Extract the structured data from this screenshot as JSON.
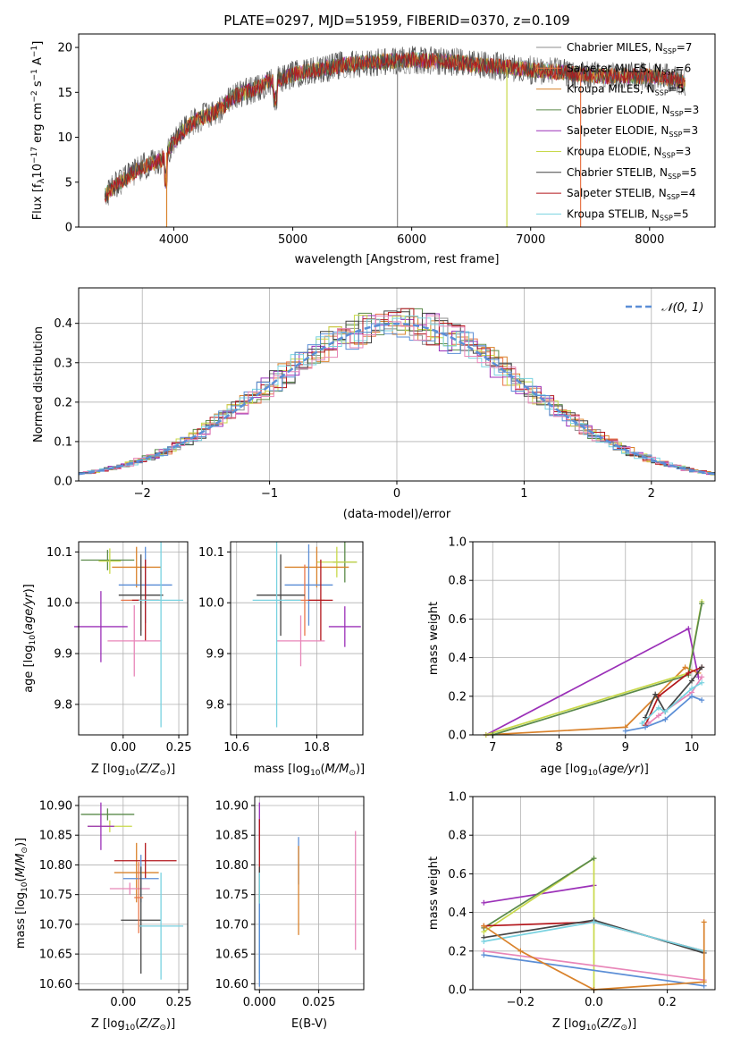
{
  "figure_title": "PLATE=0297, MJD=51959, FIBERID=0370, z=0.109",
  "colors": {
    "chabrier_miles": "#8c8c8c",
    "salpeter_miles": "#e8764a",
    "kroupa_miles": "#d9822b",
    "chabrier_elodie": "#5a8a4a",
    "salpeter_elodie": "#9b30b8",
    "kroupa_elodie": "#c8d94a",
    "chabrier_stelib": "#444444",
    "salpeter_stelib": "#b3161b",
    "kroupa_stelib": "#79d2e0",
    "blue": "#5b8ed6",
    "pink": "#e886b8",
    "normal_curve": "#5b8ed6"
  },
  "chart_data": [
    {
      "id": "spectrum",
      "type": "line",
      "title": "PLATE=0297, MJD=51959, FIBERID=0370, z=0.109",
      "xlabel": "wavelength [Angstrom, rest frame]",
      "ylabel": "Flux [fλ10⁻¹⁷ erg cm⁻² s⁻¹ A⁻¹]",
      "xlim": [
        3200,
        8550
      ],
      "ylim": [
        0,
        21.5
      ],
      "xticks": [
        4000,
        5000,
        6000,
        7000,
        8000
      ],
      "yticks": [
        0,
        5,
        10,
        15,
        20
      ],
      "grid": false,
      "legend_position": "upper-right",
      "legend": [
        {
          "label": "Chabrier MILES, N",
          "sub": "SSP",
          "value": "=7",
          "color": "#8c8c8c"
        },
        {
          "label": "Salpeter MILES, N",
          "sub": "SSP",
          "value": "=6",
          "color": "#e8764a"
        },
        {
          "label": "Kroupa MILES, N",
          "sub": "SSP",
          "value": "=5",
          "color": "#d9822b"
        },
        {
          "label": "Chabrier ELODIE, N",
          "sub": "SSP",
          "value": "=3",
          "color": "#5a8a4a"
        },
        {
          "label": "Salpeter ELODIE, N",
          "sub": "SSP",
          "value": "=3",
          "color": "#9b30b8"
        },
        {
          "label": "Kroupa ELODIE, N",
          "sub": "SSP",
          "value": "=3",
          "color": "#c8d94a"
        },
        {
          "label": "Chabrier STELIB, N",
          "sub": "SSP",
          "value": "=5",
          "color": "#444444"
        },
        {
          "label": "Salpeter STELIB, N",
          "sub": "SSP",
          "value": "=4",
          "color": "#b3161b"
        },
        {
          "label": "Kroupa STELIB, N",
          "sub": "SSP",
          "value": "=5",
          "color": "#79d2e0"
        }
      ],
      "continuum": [
        [
          3420,
          3.5
        ],
        [
          3500,
          4.5
        ],
        [
          3600,
          5.5
        ],
        [
          3700,
          6.5
        ],
        [
          3800,
          7.0
        ],
        [
          3900,
          7.5
        ],
        [
          4000,
          9.5
        ],
        [
          4100,
          11.0
        ],
        [
          4200,
          12.0
        ],
        [
          4300,
          12.5
        ],
        [
          4400,
          13.2
        ],
        [
          4500,
          14.5
        ],
        [
          4600,
          15.0
        ],
        [
          4700,
          15.5
        ],
        [
          4800,
          16.2
        ],
        [
          4900,
          16.5
        ],
        [
          5000,
          17.0
        ],
        [
          5200,
          17.5
        ],
        [
          5400,
          18.0
        ],
        [
          5600,
          18.3
        ],
        [
          5800,
          18.5
        ],
        [
          6000,
          18.6
        ],
        [
          6200,
          18.5
        ],
        [
          6400,
          18.3
        ],
        [
          6600,
          18.0
        ],
        [
          6800,
          17.8
        ],
        [
          7000,
          17.5
        ],
        [
          7200,
          17.3
        ],
        [
          7400,
          17.0
        ],
        [
          7600,
          16.8
        ],
        [
          7800,
          16.8
        ],
        [
          8000,
          16.8
        ],
        [
          8200,
          16.5
        ],
        [
          8300,
          16.0
        ]
      ]
    },
    {
      "id": "residuals",
      "type": "histogram",
      "xlabel": "(data-model)/error",
      "ylabel": "Normed distribution",
      "xlim": [
        -2.5,
        2.5
      ],
      "ylim": [
        0,
        0.49
      ],
      "xticks": [
        -2,
        -1,
        0,
        1,
        2
      ],
      "yticks": [
        0.0,
        0.1,
        0.2,
        0.3,
        0.4
      ],
      "grid": true,
      "legend_position": "upper-right",
      "legend": [
        {
          "label": "𝒩(0, 1)",
          "color": "#5b8ed6",
          "style": "dashed"
        }
      ]
    },
    {
      "id": "age_vs_z",
      "type": "errorbar",
      "xlabel": "Z [log₁₀(Z/Z⊙)]",
      "ylabel": "age  [log₁₀(age/yr)]",
      "xlim": [
        -0.2,
        0.29
      ],
      "ylim": [
        9.74,
        10.12
      ],
      "xticks": [
        0.0,
        0.25
      ],
      "xtick_labels": [
        "0.00",
        "0.25"
      ],
      "yticks": [
        9.8,
        9.9,
        10.0,
        10.1
      ],
      "grid": true,
      "points": [
        {
          "x": -0.07,
          "xerr": 0.12,
          "y": 10.084,
          "yerr": 0.02,
          "color": "#5a8a4a"
        },
        {
          "x": -0.06,
          "xerr": 0.05,
          "y": 10.082,
          "yerr": 0.025,
          "color": "#c8d94a"
        },
        {
          "x": -0.1,
          "xerr": 0.12,
          "y": 9.953,
          "yerr": 0.07,
          "color": "#9b30b8"
        },
        {
          "x": 0.06,
          "xerr": 0.11,
          "y": 10.07,
          "yerr": 0.04,
          "color": "#d9822b"
        },
        {
          "x": 0.1,
          "xerr": 0.12,
          "y": 10.035,
          "yerr": 0.075,
          "color": "#5b8ed6"
        },
        {
          "x": 0.08,
          "xerr": 0.09,
          "y": 10.005,
          "yerr": 0.06,
          "color": "#e8764a"
        },
        {
          "x": 0.08,
          "xerr": 0.1,
          "y": 10.015,
          "yerr": 0.08,
          "color": "#444444"
        },
        {
          "x": 0.1,
          "xerr": 0.06,
          "y": 10.005,
          "yerr": 0.08,
          "color": "#b3161b"
        },
        {
          "x": 0.05,
          "xerr": 0.12,
          "y": 9.925,
          "yerr": 0.07,
          "color": "#e886b8"
        },
        {
          "x": 0.17,
          "xerr": 0.1,
          "y": 10.005,
          "yerr": 0.25,
          "color": "#79d2e0"
        }
      ]
    },
    {
      "id": "age_vs_mass",
      "type": "errorbar",
      "xlabel": "mass [log₁₀(M/M⊙)]",
      "xlim": [
        10.585,
        10.915
      ],
      "ylim": [
        9.74,
        10.12
      ],
      "xticks": [
        10.6,
        10.8
      ],
      "xtick_labels": [
        "10.6",
        "10.8"
      ],
      "yticks": [
        9.8,
        9.9,
        10.0,
        10.1
      ],
      "grid": true,
      "points": [
        {
          "x": 10.87,
          "xerr": 0.03,
          "y": 10.08,
          "yerr": 0.04,
          "color": "#5a8a4a"
        },
        {
          "x": 10.85,
          "xerr": 0.05,
          "y": 10.08,
          "yerr": 0.03,
          "color": "#c8d94a"
        },
        {
          "x": 10.87,
          "xerr": 0.04,
          "y": 9.953,
          "yerr": 0.04,
          "color": "#9b30b8"
        },
        {
          "x": 10.8,
          "xerr": 0.08,
          "y": 10.07,
          "yerr": 0.04,
          "color": "#d9822b"
        },
        {
          "x": 10.78,
          "xerr": 0.06,
          "y": 10.035,
          "yerr": 0.08,
          "color": "#5b8ed6"
        },
        {
          "x": 10.77,
          "xerr": 0.05,
          "y": 10.005,
          "yerr": 0.07,
          "color": "#e8764a"
        },
        {
          "x": 10.71,
          "xerr": 0.06,
          "y": 10.015,
          "yerr": 0.08,
          "color": "#444444"
        },
        {
          "x": 10.81,
          "xerr": 0.03,
          "y": 10.005,
          "yerr": 0.08,
          "color": "#b3161b"
        },
        {
          "x": 10.76,
          "xerr": 0.06,
          "y": 9.925,
          "yerr": 0.05,
          "color": "#e886b8"
        },
        {
          "x": 10.7,
          "xerr": 0.06,
          "y": 10.005,
          "yerr": 0.25,
          "color": "#79d2e0"
        }
      ]
    },
    {
      "id": "mass_weight_vs_age",
      "type": "line",
      "xlabel": "age  [log₁₀(age/yr)]",
      "ylabel": "mass weight",
      "xlim": [
        6.7,
        10.35
      ],
      "ylim": [
        0,
        1.0
      ],
      "xticks": [
        7,
        8,
        9,
        10
      ],
      "yticks": [
        0.0,
        0.2,
        0.4,
        0.6,
        0.8,
        1.0
      ],
      "grid": true,
      "series": [
        {
          "color": "#d9822b",
          "points": [
            [
              6.9,
              0
            ],
            [
              9.0,
              0.04
            ],
            [
              9.9,
              0.35
            ],
            [
              10.1,
              0.32
            ]
          ]
        },
        {
          "color": "#9b30b8",
          "points": [
            [
              6.9,
              0
            ],
            [
              9.95,
              0.55
            ],
            [
              10.1,
              0.3
            ]
          ]
        },
        {
          "color": "#c8d94a",
          "points": [
            [
              6.9,
              0
            ],
            [
              9.95,
              0.32
            ],
            [
              10.15,
              0.69
            ]
          ]
        },
        {
          "color": "#5a8a4a",
          "points": [
            [
              7.0,
              0
            ],
            [
              9.95,
              0.31
            ],
            [
              10.15,
              0.68
            ]
          ]
        },
        {
          "color": "#b3161b",
          "points": [
            [
              9.3,
              0.05
            ],
            [
              9.5,
              0.2
            ],
            [
              9.95,
              0.32
            ],
            [
              10.15,
              0.35
            ]
          ]
        },
        {
          "color": "#444444",
          "points": [
            [
              9.3,
              0.09
            ],
            [
              9.45,
              0.21
            ],
            [
              9.6,
              0.12
            ],
            [
              10.0,
              0.28
            ],
            [
              10.15,
              0.35
            ]
          ]
        },
        {
          "color": "#e886b8",
          "points": [
            [
              9.35,
              0.06
            ],
            [
              9.5,
              0.1
            ],
            [
              10.0,
              0.22
            ],
            [
              10.15,
              0.3
            ]
          ]
        },
        {
          "color": "#79d2e0",
          "points": [
            [
              9.25,
              0.06
            ],
            [
              9.5,
              0.14
            ],
            [
              9.6,
              0.12
            ],
            [
              10.0,
              0.24
            ],
            [
              10.15,
              0.27
            ]
          ]
        },
        {
          "color": "#5b8ed6",
          "points": [
            [
              9.0,
              0.02
            ],
            [
              9.3,
              0.04
            ],
            [
              9.6,
              0.08
            ],
            [
              10.0,
              0.2
            ],
            [
              10.15,
              0.18
            ]
          ]
        }
      ]
    },
    {
      "id": "mass_vs_z",
      "type": "errorbar",
      "xlabel": "Z [log₁₀(Z/Z⊙)]",
      "ylabel": "mass [log₁₀(M/M⊙)]",
      "xlim": [
        -0.2,
        0.29
      ],
      "ylim": [
        10.59,
        10.915
      ],
      "xticks": [
        0.0,
        0.25
      ],
      "xtick_labels": [
        "0.00",
        "0.25"
      ],
      "yticks": [
        10.6,
        10.65,
        10.7,
        10.75,
        10.8,
        10.85,
        10.9
      ],
      "grid": true,
      "points": [
        {
          "x": -0.07,
          "xerr": 0.12,
          "y": 10.885,
          "yerr": 0.01,
          "color": "#5a8a4a"
        },
        {
          "x": -0.06,
          "xerr": 0.1,
          "y": 10.865,
          "yerr": 0.01,
          "color": "#c8d94a"
        },
        {
          "x": -0.1,
          "xerr": 0.06,
          "y": 10.865,
          "yerr": 0.04,
          "color": "#9b30b8"
        },
        {
          "x": 0.06,
          "xerr": 0.1,
          "y": 10.787,
          "yerr": 0.05,
          "color": "#d9822b"
        },
        {
          "x": 0.1,
          "xerr": 0.14,
          "y": 10.807,
          "yerr": 0.03,
          "color": "#b3161b"
        },
        {
          "x": 0.08,
          "xerr": 0.08,
          "y": 10.777,
          "yerr": 0.04,
          "color": "#5b8ed6"
        },
        {
          "x": 0.03,
          "xerr": 0.09,
          "y": 10.76,
          "yerr": 0.01,
          "color": "#e886b8"
        },
        {
          "x": 0.08,
          "xerr": 0.09,
          "y": 10.707,
          "yerr": 0.09,
          "color": "#444444"
        },
        {
          "x": 0.17,
          "xerr": 0.1,
          "y": 10.697,
          "yerr": 0.09,
          "color": "#79d2e0"
        },
        {
          "x": 0.07,
          "xerr": 0.02,
          "y": 10.745,
          "yerr": 0.06,
          "color": "#e8764a"
        }
      ]
    },
    {
      "id": "mass_vs_ebv",
      "type": "errorbar",
      "xlabel": "E(B-V)",
      "xlim": [
        -0.002,
        0.044
      ],
      "ylim": [
        10.59,
        10.915
      ],
      "xticks": [
        0.0,
        0.025
      ],
      "xtick_labels": [
        "0.000",
        "0.025"
      ],
      "yticks": [
        10.6,
        10.65,
        10.7,
        10.75,
        10.8,
        10.85,
        10.9
      ],
      "grid": true,
      "points": [
        {
          "x": 0.0,
          "y": 10.865,
          "yerr": 0.04,
          "color": "#9b30b8"
        },
        {
          "x": 0.0,
          "y": 10.807,
          "yerr": 0.07,
          "color": "#b3161b"
        },
        {
          "x": 0.0,
          "y": 10.707,
          "yerr": 0.09,
          "color": "#444444"
        },
        {
          "x": 0.0,
          "y": 10.697,
          "yerr": 0.09,
          "color": "#79d2e0"
        },
        {
          "x": 0.0,
          "y": 10.665,
          "yerr": 0.07,
          "color": "#5b8ed6"
        },
        {
          "x": 0.0165,
          "y": 10.807,
          "yerr": 0.04,
          "color": "#5b8ed6"
        },
        {
          "x": 0.0165,
          "y": 10.757,
          "yerr": 0.075,
          "color": "#d9822b"
        },
        {
          "x": 0.0405,
          "y": 10.757,
          "yerr": 0.1,
          "color": "#e886b8"
        }
      ]
    },
    {
      "id": "mass_weight_vs_z",
      "type": "line",
      "xlabel": "Z [log₁₀(Z/Z⊙)]",
      "ylabel": "mass weight",
      "xlim": [
        -0.33,
        0.33
      ],
      "ylim": [
        0,
        1.0
      ],
      "xticks": [
        -0.2,
        0.0,
        0.2
      ],
      "xtick_labels": [
        "−0.2",
        "0.0",
        "0.2"
      ],
      "yticks": [
        0.0,
        0.2,
        0.4,
        0.6,
        0.8,
        1.0
      ],
      "grid": true,
      "series": [
        {
          "color": "#9b30b8",
          "points": [
            [
              -0.3,
              0.45
            ],
            [
              0.0,
              0.54
            ]
          ]
        },
        {
          "color": "#c8d94a",
          "points": [
            [
              -0.3,
              0.3
            ],
            [
              0.0,
              0.68
            ],
            [
              0.0,
              0.0
            ]
          ]
        },
        {
          "color": "#5a8a4a",
          "points": [
            [
              -0.3,
              0.32
            ],
            [
              0.0,
              0.68
            ]
          ]
        },
        {
          "color": "#b3161b",
          "points": [
            [
              -0.3,
              0.33
            ],
            [
              0.0,
              0.35
            ],
            [
              0.3,
              0.2
            ]
          ]
        },
        {
          "color": "#444444",
          "points": [
            [
              -0.3,
              0.27
            ],
            [
              0.0,
              0.36
            ],
            [
              0.3,
              0.19
            ]
          ]
        },
        {
          "color": "#79d2e0",
          "points": [
            [
              -0.3,
              0.25
            ],
            [
              0.0,
              0.35
            ],
            [
              0.3,
              0.2
            ]
          ]
        },
        {
          "color": "#e886b8",
          "points": [
            [
              -0.3,
              0.2
            ],
            [
              0.3,
              0.05
            ]
          ]
        },
        {
          "color": "#5b8ed6",
          "points": [
            [
              -0.3,
              0.18
            ],
            [
              0.3,
              0.02
            ]
          ]
        },
        {
          "color": "#d9822b",
          "points": [
            [
              -0.3,
              0.33
            ],
            [
              -0.2,
              0.2
            ],
            [
              0.0,
              0.0
            ],
            [
              0.3,
              0.04
            ],
            [
              0.3,
              0.35
            ]
          ]
        }
      ]
    }
  ]
}
